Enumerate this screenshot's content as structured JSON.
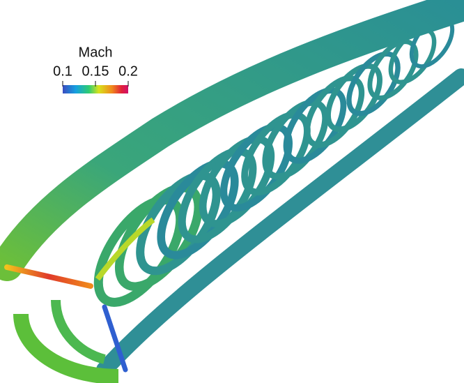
{
  "colorbar": {
    "title": "Mach",
    "min": 0.1,
    "max": 0.2,
    "ticks": [
      0.1,
      0.15,
      0.2
    ]
  }
}
